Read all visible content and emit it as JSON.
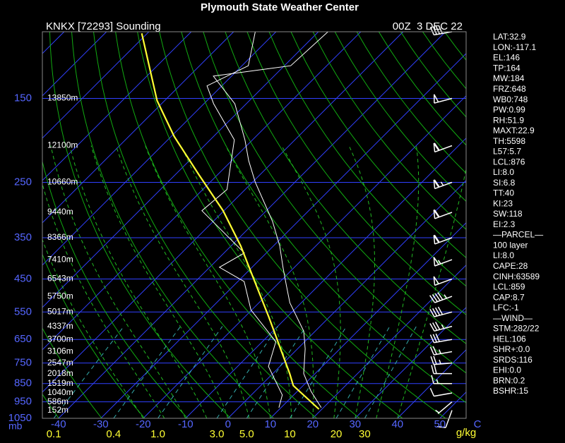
{
  "title": "Plymouth State Weather Center",
  "header": {
    "station": "KNKX [72293] Sounding",
    "time": "00Z  3 DEC 22"
  },
  "chart_data": {
    "type": "skewt",
    "ylim": [
      1050,
      100
    ],
    "yticks": [
      150,
      250,
      350,
      450,
      550,
      650,
      750,
      850,
      950,
      1050
    ],
    "y_unit": "mb",
    "xlim": [
      -43.8,
      56.2
    ],
    "xticks": [
      -40,
      -30,
      -20,
      -10,
      0,
      10,
      20,
      30,
      40,
      50
    ],
    "x_unit": "C",
    "mixing_ratio_ticks": [
      0.1,
      0.4,
      {
        "value": 1,
        "label": "1.0"
      },
      {
        "value": 3,
        "label": "3.0"
      },
      {
        "value": 5,
        "label": "5.0"
      },
      10,
      20,
      30
    ],
    "mixing_ratio_unit": "g/kg",
    "height_levels": [
      150,
      200,
      250,
      300,
      350,
      400,
      450,
      500,
      550,
      600,
      650,
      700,
      750,
      800,
      850,
      900,
      950,
      1000
    ],
    "height_labels": [
      "13850m",
      "12100m",
      "10660m",
      "9440m",
      "8366m",
      "7410m",
      "6543m",
      "5750m",
      "5017m",
      "4337m",
      "3700m",
      "3106m",
      "2547m",
      "2018m",
      "1519m",
      "1040m",
      "586m",
      "152m"
    ],
    "series": [
      {
        "color": "#ffffff",
        "pressure": [
          984,
          891,
          800,
          688,
          618,
          520,
          467,
          419,
          368,
          317,
          250,
          219,
          193,
          155,
          131,
          123,
          99
        ],
        "values": [
          19.5,
          13.2,
          7.3,
          1.8,
          -2.7,
          -12.7,
          -17.7,
          -22.7,
          -28.5,
          -36,
          -49.3,
          -56,
          -61.8,
          -72.7,
          -84.3,
          -68.5,
          -67.7
        ]
      },
      {
        "color": "#ffffff",
        "pressure": [
          984,
          911,
          766,
          659,
          543,
          457,
          419,
          384,
          297,
          261,
          193,
          155,
          139,
          123,
          99
        ],
        "values": [
          9.5,
          7.3,
          -2.7,
          -6.8,
          -20.2,
          -28.5,
          -37.7,
          -35.2,
          -55.2,
          -54.3,
          -64.3,
          -77.7,
          -83.5,
          -78.5,
          -85.2
        ]
      },
      {
        "color": "#ffff33",
        "pressure": [
          993,
          861,
          800,
          673,
          567,
          457,
          368,
          297,
          239,
          189,
          152,
          101
        ],
        "values": [
          19.3,
          7.7,
          4,
          -5.2,
          -14.3,
          -26,
          -37.7,
          -50.2,
          -64.3,
          -79.3,
          -91.8,
          -111.3
        ]
      }
    ],
    "wind": {
      "pressure": [
        1000,
        950,
        900,
        850,
        800,
        750,
        700,
        650,
        600,
        550,
        500,
        450,
        400,
        350,
        300,
        250,
        200,
        150,
        100
      ],
      "direction": [
        200,
        230,
        260,
        270,
        270,
        265,
        260,
        260,
        255,
        255,
        250,
        250,
        250,
        250,
        250,
        250,
        250,
        255,
        260
      ],
      "speed": [
        10,
        5,
        10,
        15,
        20,
        25,
        25,
        30,
        35,
        40,
        45,
        50,
        55,
        60,
        60,
        65,
        60,
        50,
        40
      ]
    }
  },
  "stats": [
    "LAT:32.9",
    "LON:-117.1",
    "EL:146",
    "TP:164",
    "MW:184",
    "FRZ:648",
    "WB0:748",
    "PW:0.99",
    "RH:51.9",
    "MAXT:22.9",
    "TH:5598",
    "L57:5.7",
    "LCL:876",
    "LI:8.0",
    "SI:6.8",
    "TT:40",
    "KI:23",
    "SW:118",
    "EI:2.3",
    "—PARCEL—",
    "100 layer",
    "LI:8.0",
    "CAPE:28",
    "CINH:63589",
    "LCL:859",
    "CAP:8.7",
    "LFC:-1",
    "—WIND—",
    "STM:282/22",
    "HEL:106",
    "SHR+:0.0",
    "SRDS:116",
    "EHI:0.0",
    "BRN:0.2",
    "BSHR:15"
  ]
}
